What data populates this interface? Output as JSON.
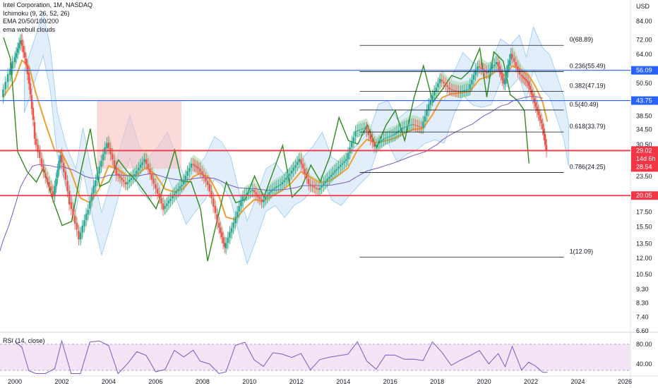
{
  "legend": {
    "title": "Intel Corporation, 1M, NASDAQ",
    "ichimoku": "Ichimoku (9, 26, 52, 26)",
    "ema": "EMA 20/50/100/200",
    "clouds": "ema webull clouds"
  },
  "rsi_label": "RSI (14, close)",
  "currency": "USD",
  "colors": {
    "candle_up": "#26a69a",
    "candle_down": "#ef5350",
    "blue_line": "#2962ff",
    "red_line": "#f23645",
    "green_line": "#2e8b1e",
    "ema_orange": "#f0a030",
    "ema_purple": "#7e57c2",
    "cloud_green": "#a5d6a7",
    "cloud_red": "#f8bbbb",
    "ichimoku_cloud": "#cfe2f7",
    "rsi_bg": "#f3e5f5",
    "rsi_line": "#7e57c2"
  },
  "chart_data": {
    "type": "candlestick",
    "x_ticks": [
      "2000",
      "2002",
      "2004",
      "2006",
      "2008",
      "2010",
      "2012",
      "2014",
      "2016",
      "2018",
      "2020",
      "2022",
      "2024",
      "2026"
    ],
    "y_ticks": [
      "84.00",
      "72.00",
      "64.00",
      "56.09",
      "50.50",
      "43.75",
      "38.50",
      "34.50",
      "30.50",
      "29.02",
      "28.54",
      "23.50",
      "20.05",
      "17.50",
      "15.50",
      "13.50",
      "12.00",
      "10.50",
      "9.30",
      "8.30",
      "7.40",
      "6.60"
    ],
    "y_scale": "log",
    "horizontal_lines": [
      {
        "price": 56.09,
        "color": "#2962ff",
        "label": "56.09"
      },
      {
        "price": 43.75,
        "color": "#2962ff",
        "label": "43.75"
      },
      {
        "price": 29.02,
        "color": "#f23645",
        "label": "29.02"
      },
      {
        "price": 20.05,
        "color": "#f23645",
        "label": "20.05"
      }
    ],
    "price_badges": [
      {
        "text": "29.02",
        "color": "#f23645"
      },
      {
        "text": "14d 6h",
        "color": "#f23645"
      },
      {
        "text": "28.54",
        "color": "#f23645"
      }
    ],
    "fibonacci": [
      {
        "level": "0(68.89)",
        "price": 68.89
      },
      {
        "level": "0.236(55.49)",
        "price": 55.49
      },
      {
        "level": "0.382(47.19)",
        "price": 47.19
      },
      {
        "level": "0.5(40.49)",
        "price": 40.49
      },
      {
        "level": "0.618(33.79)",
        "price": 33.79
      },
      {
        "level": "0.786(24.25)",
        "price": 24.25
      },
      {
        "level": "1(12.09)",
        "price": 12.09
      }
    ],
    "price_path": [
      [
        1999.5,
        45
      ],
      [
        2000.0,
        60
      ],
      [
        2000.3,
        72
      ],
      [
        2000.6,
        55
      ],
      [
        2000.9,
        32
      ],
      [
        2001.3,
        24
      ],
      [
        2001.7,
        20
      ],
      [
        2002.0,
        28
      ],
      [
        2002.4,
        19
      ],
      [
        2002.8,
        14
      ],
      [
        2003.2,
        18
      ],
      [
        2003.6,
        24
      ],
      [
        2004.0,
        31
      ],
      [
        2004.4,
        24
      ],
      [
        2004.8,
        22
      ],
      [
        2005.2,
        24
      ],
      [
        2005.6,
        27
      ],
      [
        2006.0,
        22
      ],
      [
        2006.4,
        18
      ],
      [
        2006.8,
        20
      ],
      [
        2007.2,
        22
      ],
      [
        2007.6,
        26
      ],
      [
        2007.9,
        25
      ],
      [
        2008.3,
        22
      ],
      [
        2008.7,
        16
      ],
      [
        2009.0,
        13
      ],
      [
        2009.4,
        16
      ],
      [
        2009.8,
        20
      ],
      [
        2010.2,
        21
      ],
      [
        2010.6,
        19
      ],
      [
        2011.0,
        21
      ],
      [
        2011.4,
        22
      ],
      [
        2011.8,
        24
      ],
      [
        2012.2,
        27
      ],
      [
        2012.6,
        22
      ],
      [
        2013.0,
        21
      ],
      [
        2013.4,
        23
      ],
      [
        2013.8,
        25
      ],
      [
        2014.2,
        27
      ],
      [
        2014.6,
        34
      ],
      [
        2015.0,
        35
      ],
      [
        2015.4,
        30
      ],
      [
        2015.8,
        32
      ],
      [
        2016.2,
        33
      ],
      [
        2016.6,
        35
      ],
      [
        2017.0,
        36
      ],
      [
        2017.4,
        35
      ],
      [
        2017.8,
        44
      ],
      [
        2018.2,
        52
      ],
      [
        2018.6,
        48
      ],
      [
        2019.0,
        47
      ],
      [
        2019.4,
        48
      ],
      [
        2019.8,
        58
      ],
      [
        2020.2,
        55
      ],
      [
        2020.6,
        60
      ],
      [
        2020.9,
        50
      ],
      [
        2021.2,
        64
      ],
      [
        2021.6,
        54
      ],
      [
        2021.9,
        51
      ],
      [
        2022.2,
        43
      ],
      [
        2022.5,
        36
      ],
      [
        2022.7,
        29
      ]
    ],
    "rsi": {
      "upper": "80.00",
      "lower": "40.00",
      "length": 14
    }
  }
}
